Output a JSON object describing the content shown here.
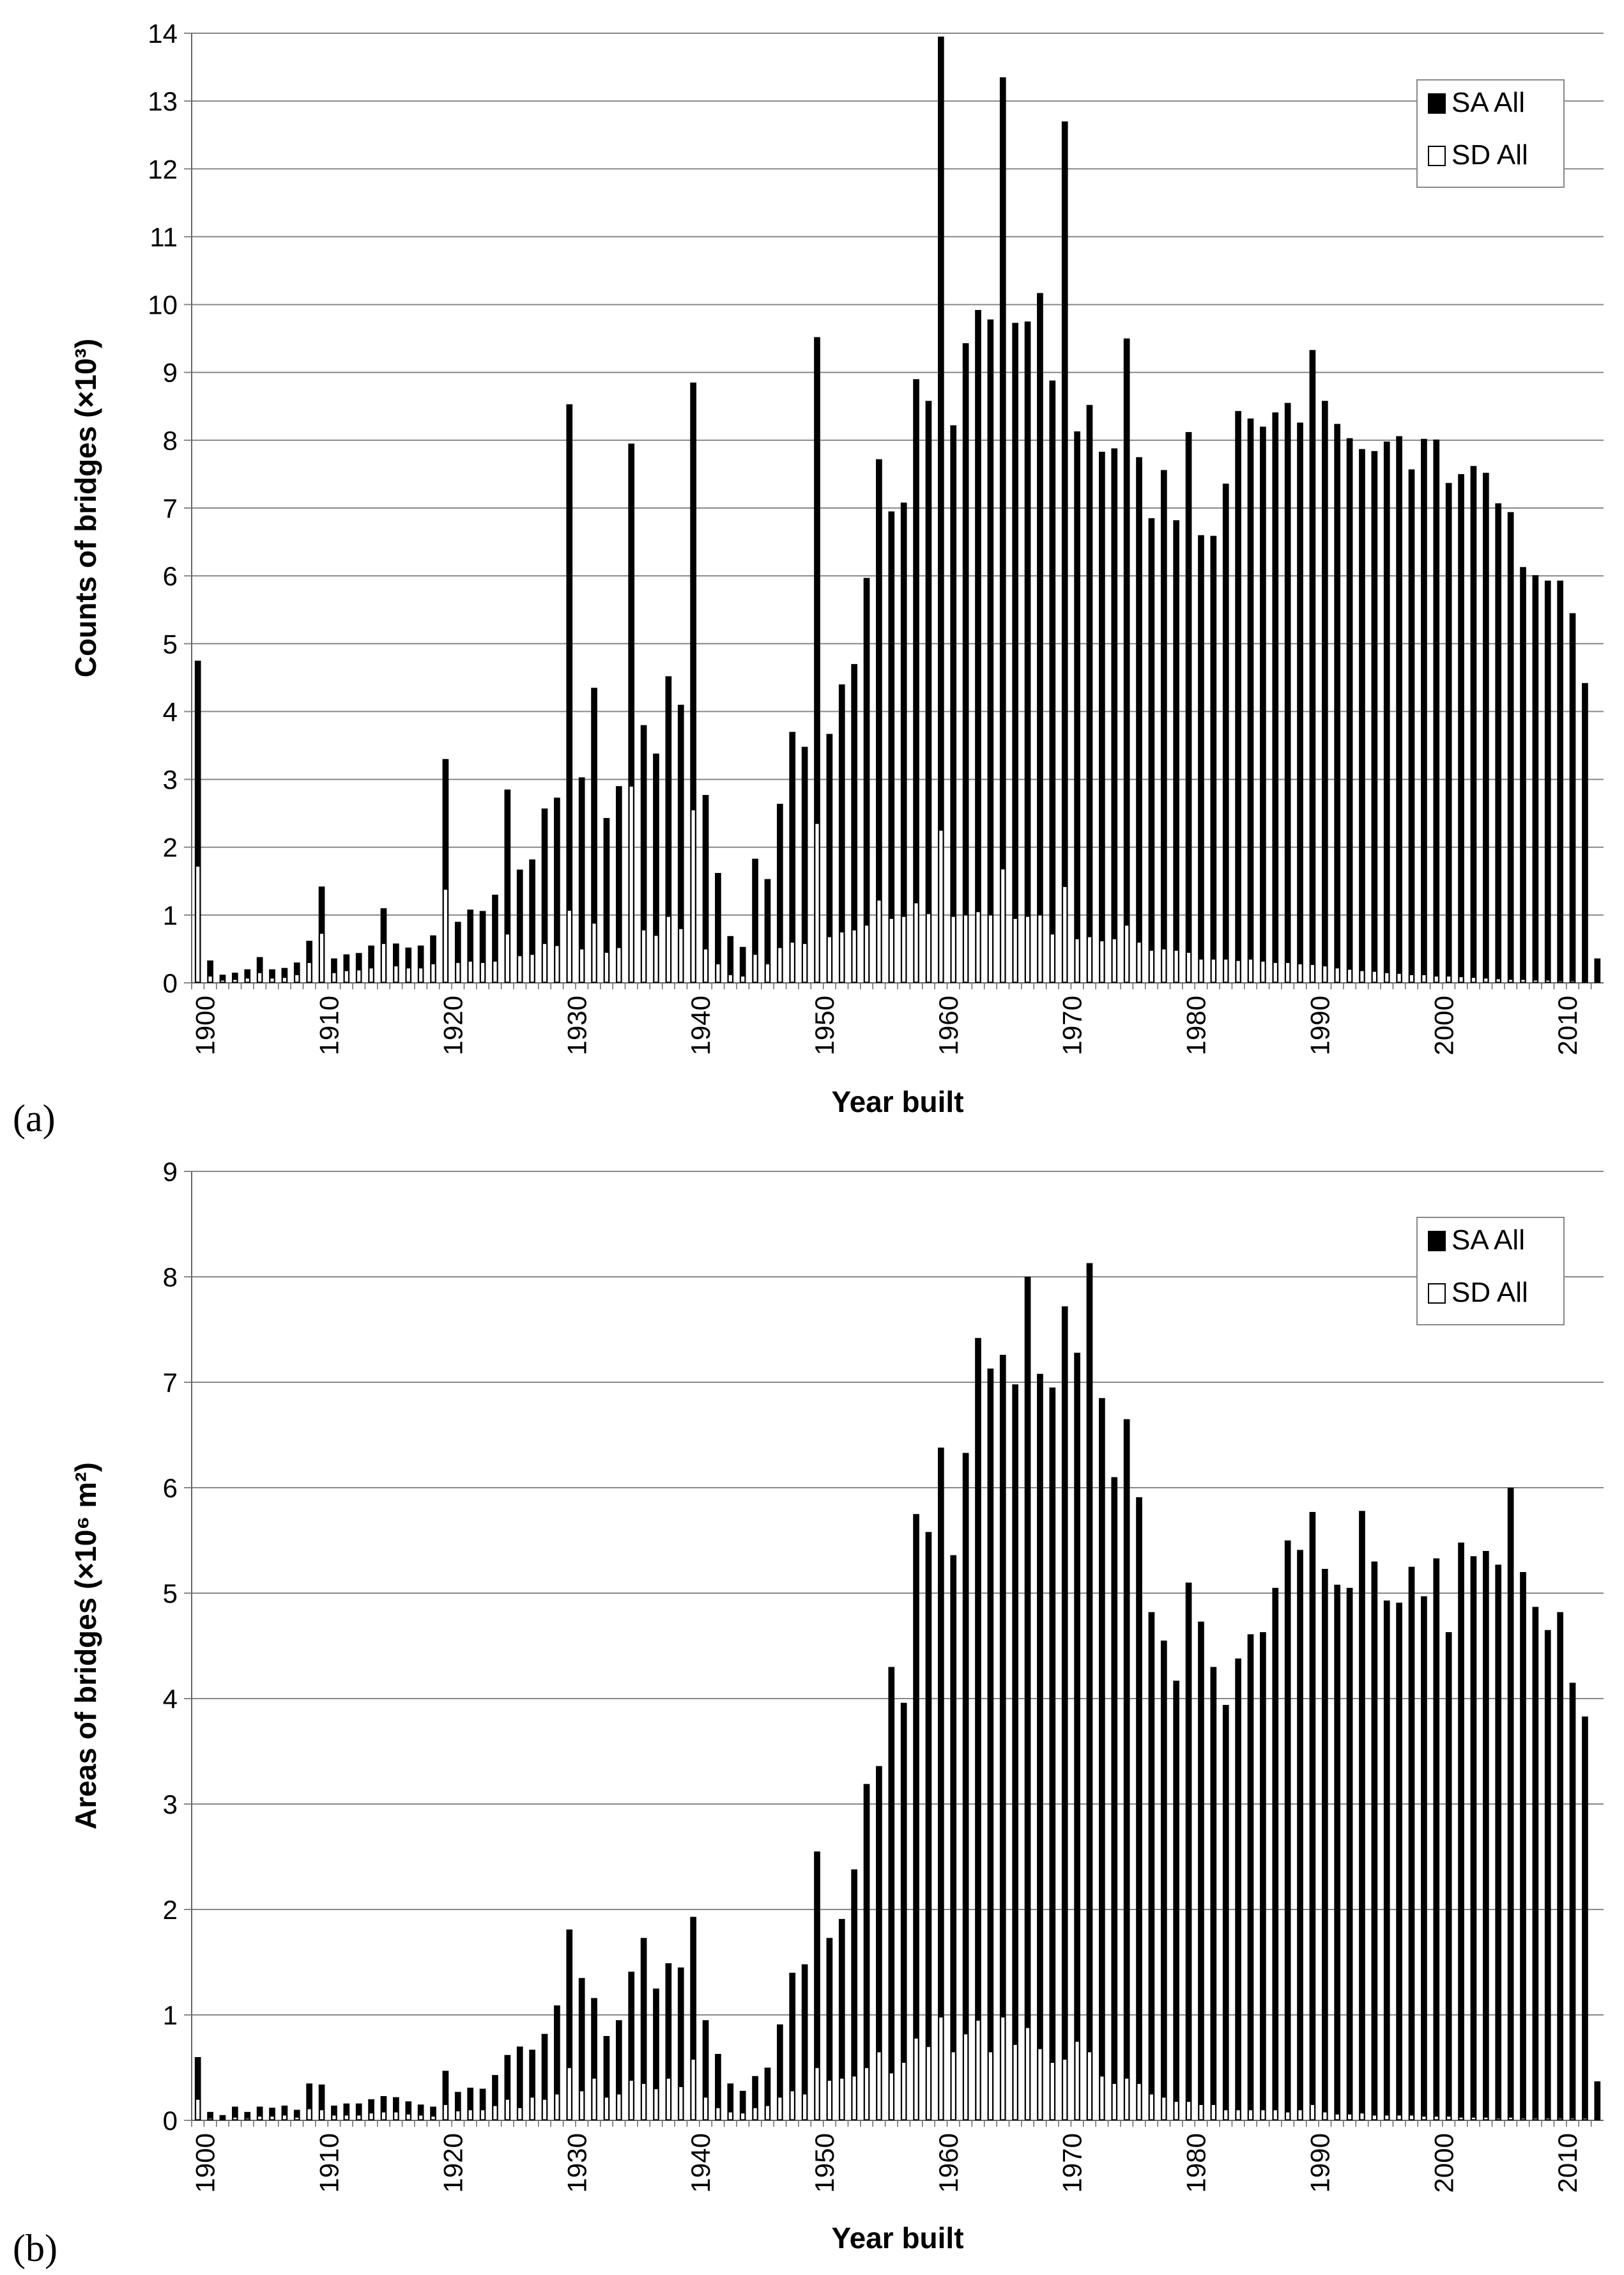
{
  "panels": [
    {
      "label": "(a)",
      "chart_data": {
        "type": "bar",
        "xlabel": "Year built",
        "ylabel": "Counts of bridges (×10³)",
        "ylim": [
          0,
          14
        ],
        "yticks": [
          0,
          1,
          2,
          3,
          4,
          5,
          6,
          7,
          8,
          9,
          10,
          11,
          12,
          13,
          14
        ],
        "xticks": [
          1900,
          1910,
          1920,
          1930,
          1940,
          1950,
          1960,
          1970,
          1980,
          1990,
          2000,
          2010
        ],
        "grid": true,
        "legend_position": "top-right",
        "x_start": 1900,
        "x_end": 2013,
        "series": [
          {
            "name": "SA All",
            "fill": "#000000",
            "values": [
              4.75,
              0.33,
              0.12,
              0.15,
              0.2,
              0.38,
              0.2,
              0.22,
              0.3,
              0.62,
              1.42,
              0.36,
              0.42,
              0.44,
              0.55,
              1.1,
              0.58,
              0.52,
              0.55,
              0.7,
              3.3,
              0.9,
              1.08,
              1.06,
              1.3,
              2.85,
              1.67,
              1.82,
              2.57,
              2.73,
              8.53,
              3.03,
              4.35,
              2.43,
              2.9,
              7.95,
              3.8,
              3.38,
              4.52,
              4.1,
              8.85,
              2.77,
              1.62,
              0.69,
              0.53,
              1.83,
              1.53,
              2.64,
              3.7,
              3.48,
              9.52,
              3.67,
              4.4,
              4.7,
              5.97,
              7.72,
              6.95,
              7.08,
              8.9,
              8.58,
              13.95,
              8.22,
              9.43,
              9.92,
              9.78,
              13.35,
              9.73,
              9.75,
              10.17,
              8.88,
              12.7,
              8.13,
              8.52,
              7.83,
              7.88,
              9.5,
              7.75,
              6.85,
              7.56,
              6.82,
              8.12,
              6.6,
              6.59,
              7.36,
              8.43,
              8.32,
              8.2,
              8.41,
              8.55,
              8.26,
              9.33,
              8.58,
              8.24,
              8.03,
              7.87,
              7.84,
              7.98,
              8.06,
              7.57,
              8.02,
              8.01,
              7.37,
              7.5,
              7.62,
              7.52,
              7.07,
              6.94,
              6.13,
              6.01,
              5.93,
              5.93,
              5.45,
              4.42,
              0.36
            ]
          },
          {
            "name": "SD All",
            "fill": "#ffffff",
            "values": [
              1.72,
              0.1,
              0.04,
              0.05,
              0.07,
              0.15,
              0.07,
              0.08,
              0.12,
              0.3,
              0.73,
              0.15,
              0.18,
              0.19,
              0.22,
              0.58,
              0.25,
              0.22,
              0.22,
              0.28,
              1.38,
              0.3,
              0.32,
              0.3,
              0.32,
              0.72,
              0.4,
              0.42,
              0.58,
              0.55,
              1.07,
              0.5,
              0.88,
              0.45,
              0.52,
              2.9,
              0.78,
              0.7,
              0.98,
              0.8,
              2.55,
              0.5,
              0.28,
              0.12,
              0.1,
              0.42,
              0.28,
              0.52,
              0.6,
              0.58,
              2.35,
              0.68,
              0.75,
              0.78,
              0.85,
              1.22,
              0.95,
              0.98,
              1.18,
              1.02,
              2.25,
              0.98,
              1.0,
              1.05,
              1.0,
              1.68,
              0.95,
              0.98,
              1.0,
              0.72,
              1.42,
              0.65,
              0.68,
              0.62,
              0.65,
              0.85,
              0.6,
              0.48,
              0.5,
              0.48,
              0.45,
              0.35,
              0.35,
              0.35,
              0.33,
              0.35,
              0.32,
              0.3,
              0.3,
              0.28,
              0.27,
              0.25,
              0.22,
              0.2,
              0.18,
              0.17,
              0.15,
              0.14,
              0.12,
              0.12,
              0.1,
              0.1,
              0.09,
              0.08,
              0.07,
              0.06,
              0.05,
              0.05,
              0.04,
              0.04,
              0.03,
              0.03,
              0.02,
              0.02
            ]
          }
        ]
      }
    },
    {
      "label": "(b)",
      "chart_data": {
        "type": "bar",
        "xlabel": "Year built",
        "ylabel": "Areas of bridges (×10⁶ m²)",
        "ylim": [
          0,
          9
        ],
        "yticks": [
          0,
          1,
          2,
          3,
          4,
          5,
          6,
          7,
          8,
          9
        ],
        "xticks": [
          1900,
          1910,
          1920,
          1930,
          1940,
          1950,
          1960,
          1970,
          1980,
          1990,
          2000,
          2010
        ],
        "grid": true,
        "legend_position": "top-right",
        "x_start": 1900,
        "x_end": 2013,
        "series": [
          {
            "name": "SA All",
            "fill": "#000000",
            "values": [
              0.6,
              0.08,
              0.05,
              0.13,
              0.08,
              0.13,
              0.12,
              0.14,
              0.1,
              0.35,
              0.34,
              0.14,
              0.16,
              0.16,
              0.2,
              0.23,
              0.22,
              0.18,
              0.15,
              0.13,
              0.47,
              0.27,
              0.31,
              0.3,
              0.43,
              0.62,
              0.7,
              0.67,
              0.82,
              1.09,
              1.81,
              1.35,
              1.16,
              0.8,
              0.95,
              1.41,
              1.73,
              1.25,
              1.49,
              1.45,
              1.93,
              0.95,
              0.63,
              0.35,
              0.28,
              0.42,
              0.5,
              0.91,
              1.4,
              1.48,
              2.55,
              1.73,
              1.91,
              2.38,
              3.19,
              3.36,
              4.3,
              3.96,
              5.75,
              5.58,
              6.38,
              5.36,
              6.33,
              7.42,
              7.13,
              7.26,
              6.98,
              8.0,
              7.08,
              6.95,
              7.72,
              7.28,
              8.13,
              6.85,
              6.1,
              6.65,
              5.91,
              4.82,
              4.55,
              4.17,
              5.1,
              4.73,
              4.3,
              3.94,
              4.38,
              4.61,
              4.63,
              5.05,
              5.5,
              5.41,
              5.77,
              5.23,
              5.08,
              5.05,
              5.78,
              5.3,
              4.93,
              4.91,
              5.25,
              4.97,
              5.33,
              4.63,
              5.48,
              5.35,
              5.4,
              5.27,
              6.0,
              5.2,
              4.87,
              4.65,
              4.82,
              4.15,
              3.83,
              0.37
            ]
          },
          {
            "name": "SD All",
            "fill": "#ffffff",
            "values": [
              0.2,
              0.02,
              0.01,
              0.03,
              0.02,
              0.04,
              0.04,
              0.05,
              0.03,
              0.11,
              0.1,
              0.05,
              0.05,
              0.05,
              0.07,
              0.08,
              0.08,
              0.06,
              0.05,
              0.04,
              0.15,
              0.09,
              0.1,
              0.1,
              0.14,
              0.2,
              0.12,
              0.22,
              0.2,
              0.25,
              0.5,
              0.28,
              0.4,
              0.22,
              0.25,
              0.38,
              0.35,
              0.3,
              0.4,
              0.32,
              0.58,
              0.22,
              0.12,
              0.08,
              0.07,
              0.12,
              0.14,
              0.22,
              0.28,
              0.25,
              0.5,
              0.38,
              0.4,
              0.42,
              0.5,
              0.65,
              0.45,
              0.55,
              0.78,
              0.7,
              0.98,
              0.65,
              0.82,
              0.95,
              0.65,
              0.98,
              0.72,
              0.88,
              0.68,
              0.55,
              0.58,
              0.75,
              0.65,
              0.42,
              0.35,
              0.4,
              0.35,
              0.25,
              0.22,
              0.18,
              0.18,
              0.15,
              0.15,
              0.1,
              0.1,
              0.1,
              0.1,
              0.1,
              0.08,
              0.1,
              0.15,
              0.08,
              0.06,
              0.06,
              0.07,
              0.05,
              0.05,
              0.05,
              0.05,
              0.04,
              0.04,
              0.04,
              0.03,
              0.03,
              0.03,
              0.02,
              0.03,
              0.02,
              0.02,
              0.02,
              0.02,
              0.02,
              0.02,
              0.01
            ]
          }
        ]
      }
    }
  ]
}
